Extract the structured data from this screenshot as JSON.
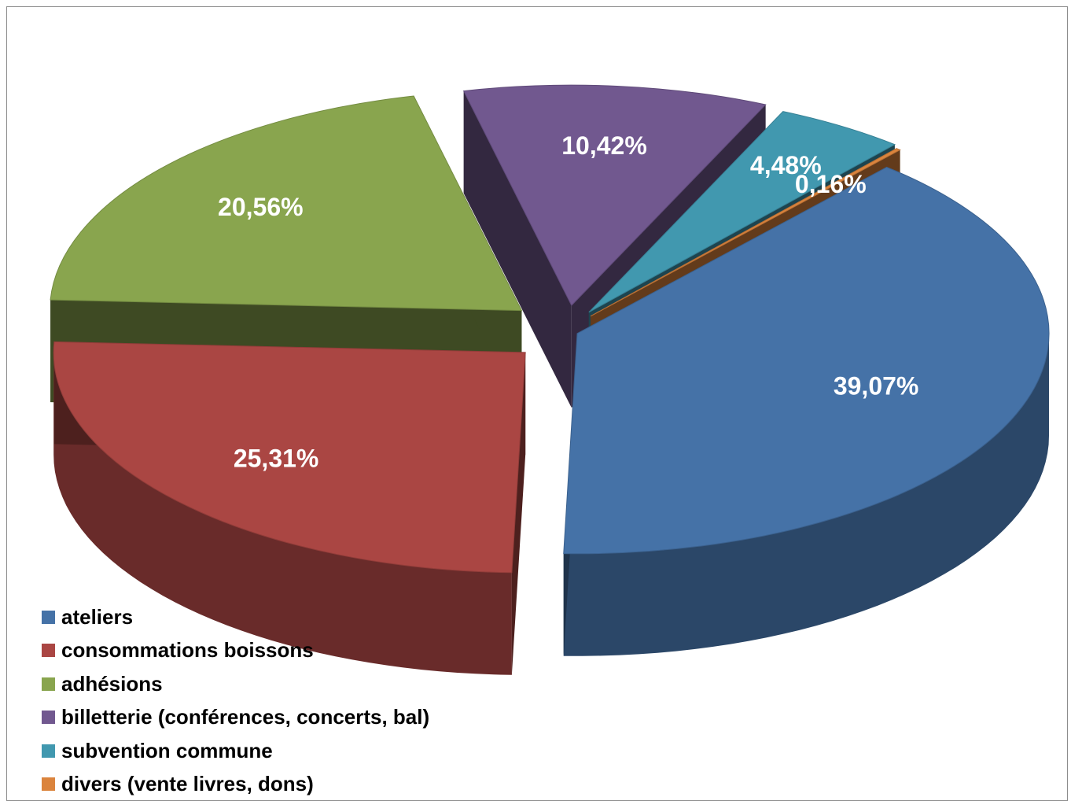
{
  "chart_data": {
    "type": "pie",
    "variant": "3d-exploded",
    "title": "",
    "legend_position": "bottom-left",
    "slices": [
      {
        "name": "ateliers",
        "value": 39.07,
        "label": "39,07%",
        "color": "#4572A7"
      },
      {
        "name": "consommations boissons",
        "value": 25.31,
        "label": "25,31%",
        "color": "#AA4643"
      },
      {
        "name": "adhésions",
        "value": 20.56,
        "label": "20,56%",
        "color": "#89A54E"
      },
      {
        "name": "billetterie (conférences, concerts, bal)",
        "value": 10.42,
        "label": "10,42%",
        "color": "#71588F"
      },
      {
        "name": "subvention commune",
        "value": 4.48,
        "label": "4,48%",
        "color": "#4198AF"
      },
      {
        "name": "divers (vente livres, dons)",
        "value": 0.16,
        "label": "0,16%",
        "color": "#DB843D"
      }
    ]
  }
}
